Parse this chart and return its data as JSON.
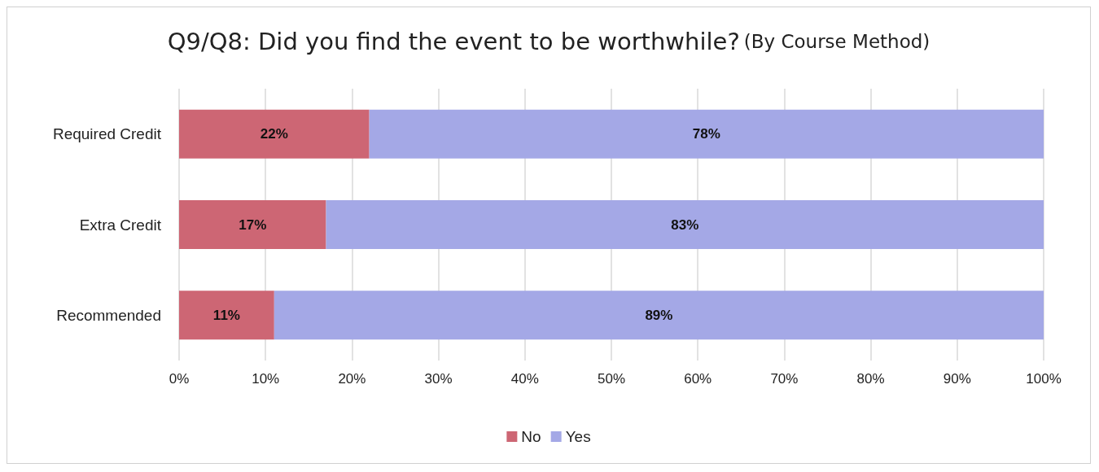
{
  "chart_data": {
    "type": "bar",
    "title": "Q9/Q8: Did you find the event to be worthwhile?",
    "subtitle": "(By Course Method)",
    "orientation": "horizontal",
    "stacked": true,
    "categories": [
      "Required Credit",
      "Extra Credit",
      "Recommended"
    ],
    "series": [
      {
        "name": "No",
        "color": "#cd6674",
        "values": [
          22,
          17,
          11
        ],
        "value_labels": [
          "22%",
          "17%",
          "11%"
        ]
      },
      {
        "name": "Yes",
        "color": "#a4a8e6",
        "values": [
          78,
          83,
          89
        ],
        "value_labels": [
          "78%",
          "83%",
          "89%"
        ]
      }
    ],
    "xlim": [
      0,
      100
    ],
    "xticks": [
      {
        "value": 0,
        "label": "0%"
      },
      {
        "value": 10,
        "label": "10%"
      },
      {
        "value": 20,
        "label": "20%"
      },
      {
        "value": 30,
        "label": "30%"
      },
      {
        "value": 40,
        "label": "40%"
      },
      {
        "value": 50,
        "label": "50%"
      },
      {
        "value": 60,
        "label": "60%"
      },
      {
        "value": 70,
        "label": "70%"
      },
      {
        "value": 80,
        "label": "80%"
      },
      {
        "value": 90,
        "label": "90%"
      },
      {
        "value": 100,
        "label": "100%"
      }
    ],
    "grid": "x",
    "legend": "bottom"
  }
}
